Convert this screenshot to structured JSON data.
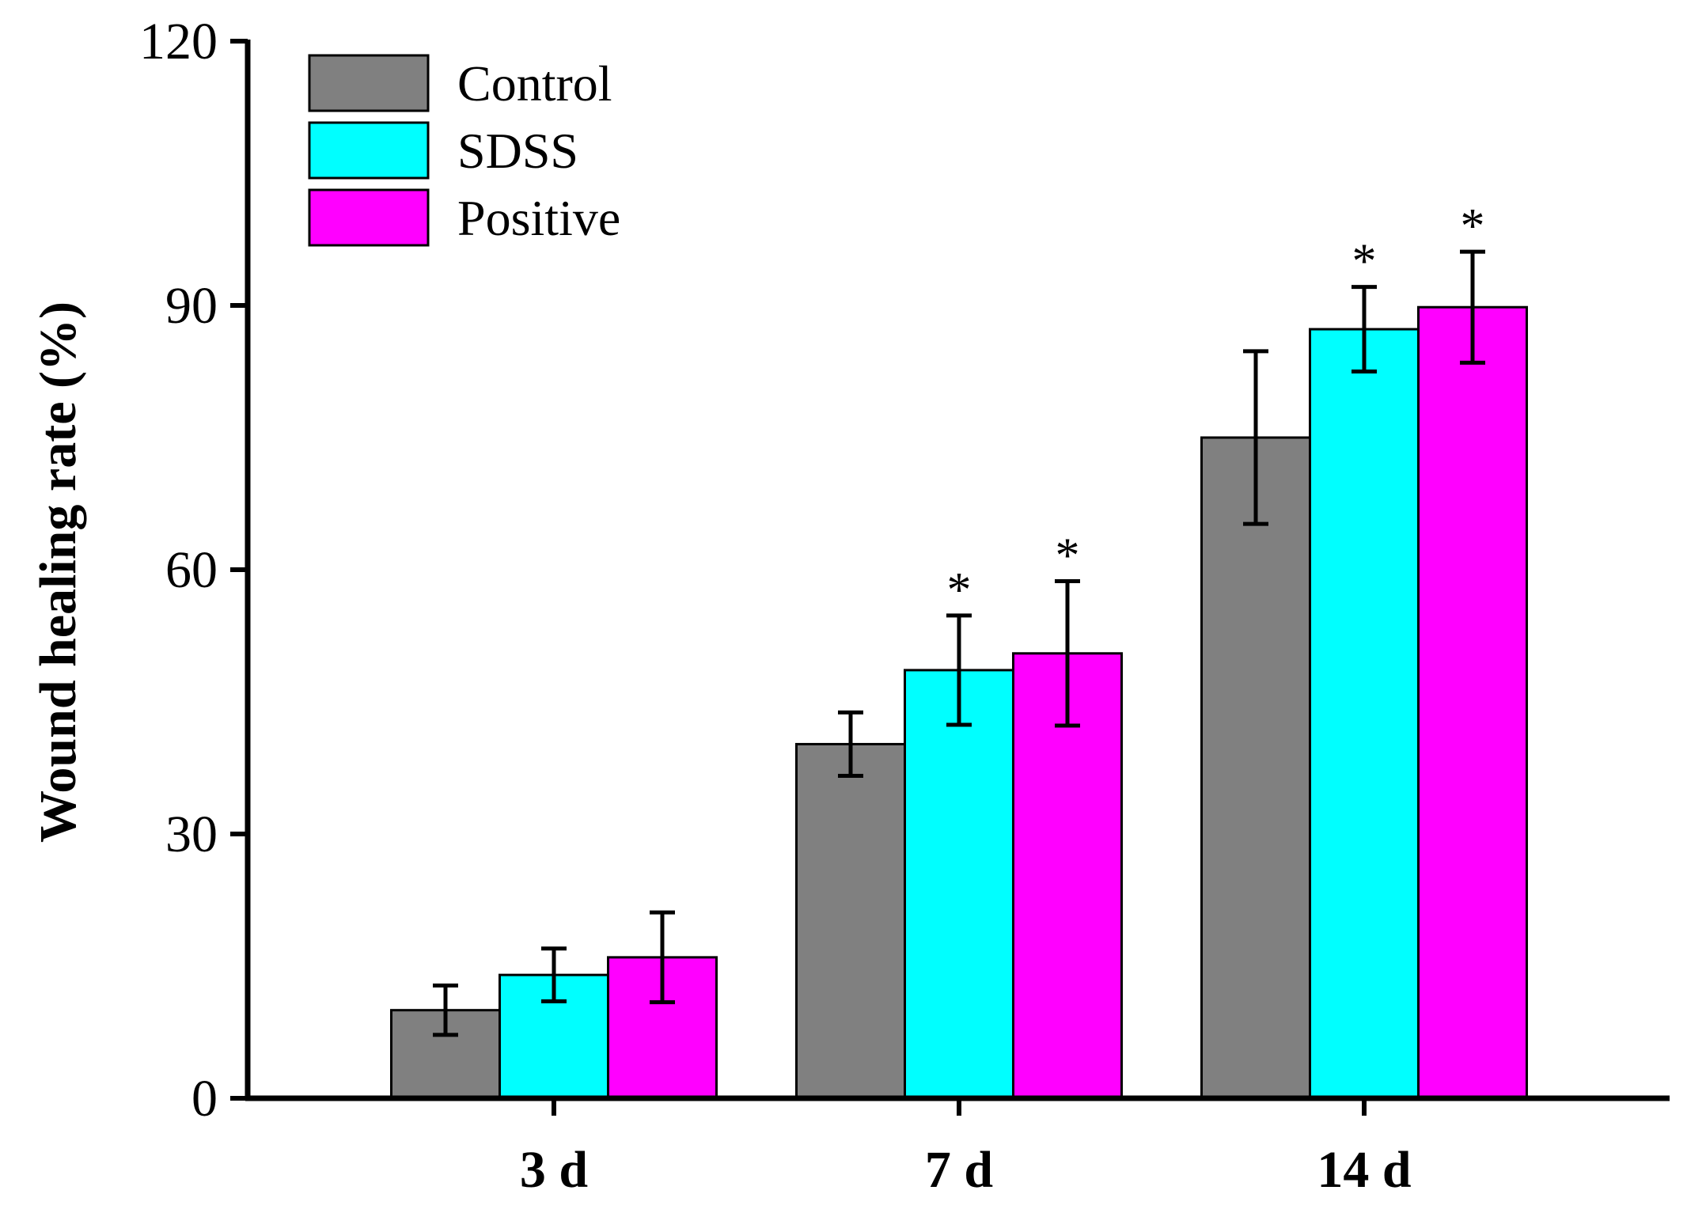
{
  "chart_data": {
    "type": "bar",
    "title": "",
    "xlabel": "",
    "ylabel": "Wound healing rate (%)",
    "ylim": [
      0,
      120
    ],
    "yticks": [
      "0",
      "30",
      "60",
      "90",
      "120"
    ],
    "categories": [
      "3 d",
      "7 d",
      "14 d"
    ],
    "series": [
      {
        "name": "Control",
        "color": "#808080",
        "values": [
          10.0,
          40.2,
          75.0
        ],
        "errors": [
          2.8,
          3.6,
          9.8
        ],
        "significance": [
          "",
          "",
          ""
        ]
      },
      {
        "name": "SDSS",
        "color": "#00FFFF",
        "values": [
          14.0,
          48.6,
          87.3
        ],
        "errors": [
          3.0,
          6.2,
          4.8
        ],
        "significance": [
          "",
          "*",
          "*"
        ]
      },
      {
        "name": "Positive",
        "color": "#FF00FF",
        "values": [
          16.0,
          50.5,
          89.8
        ],
        "errors": [
          5.1,
          8.2,
          6.3
        ],
        "significance": [
          "",
          "*",
          "*"
        ]
      }
    ],
    "legend_position": "top-left",
    "grid": false
  }
}
